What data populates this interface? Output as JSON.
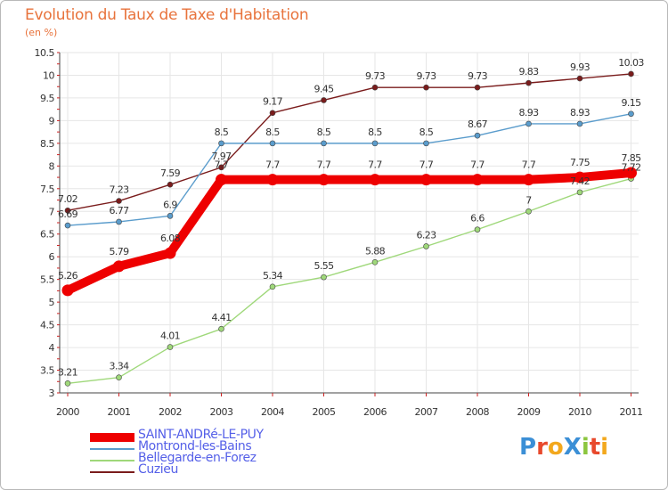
{
  "header": {
    "title": "Evolution du Taux de Taxe d'Habitation",
    "subtitle": "(en %)"
  },
  "logo": {
    "text": "ProXiti",
    "colors": [
      "#3b8fd6",
      "#e8492c",
      "#f3a81d",
      "#3b8fd6",
      "#8cc63f",
      "#e8492c",
      "#f3a81d"
    ]
  },
  "chart_data": {
    "type": "line",
    "title": "Evolution du Taux de Taxe d'Habitation",
    "subtitle": "(en %)",
    "xlabel": "",
    "ylabel": "",
    "categories": [
      "2000",
      "2001",
      "2002",
      "2003",
      "2004",
      "2005",
      "2006",
      "2007",
      "2008",
      "2009",
      "2010",
      "2011"
    ],
    "ylim": [
      3,
      10.5
    ],
    "yticks": [
      "3",
      "3.5",
      "4",
      "4.5",
      "5",
      "5.5",
      "6",
      "6.5",
      "7",
      "7.5",
      "8",
      "8.5",
      "9",
      "9.5",
      "10",
      "10.5"
    ],
    "grid": true,
    "legend_position": "bottom-left",
    "series": [
      {
        "name": "Cuzieu",
        "color": "#7a1c1c",
        "values": [
          7.02,
          7.23,
          7.59,
          7.97,
          9.17,
          9.45,
          9.73,
          9.73,
          9.73,
          9.83,
          9.93,
          10.03
        ],
        "labels": [
          "7.02",
          "7.23",
          "7.59",
          "7.97",
          "9.17",
          "9.45",
          "9.73",
          "9.73",
          "9.73",
          "9.83",
          "9.93",
          "10.03"
        ]
      },
      {
        "name": "Montrond-les-Bains",
        "color": "#5a9ccc",
        "values": [
          6.69,
          6.77,
          6.9,
          8.5,
          8.5,
          8.5,
          8.5,
          8.5,
          8.67,
          8.93,
          8.93,
          9.15
        ],
        "labels": [
          "6.69",
          "6.77",
          "6.9",
          "8.5",
          "8.5",
          "8.5",
          "8.5",
          "8.5",
          "8.67",
          "8.93",
          "8.93",
          "9.15"
        ]
      },
      {
        "name": "Bellegarde-en-Forez",
        "color": "#9fd87a",
        "values": [
          3.21,
          3.34,
          4.01,
          4.41,
          5.34,
          5.55,
          5.88,
          6.23,
          6.6,
          7.0,
          7.42,
          7.72
        ],
        "labels": [
          "3.21",
          "3.34",
          "4.01",
          "4.41",
          "5.34",
          "5.55",
          "5.88",
          "6.23",
          "6.6",
          "7",
          "7.42",
          "7.72"
        ]
      },
      {
        "name": "SAINT-ANDRé-LE-PUY",
        "color": "#ee0000",
        "values": [
          5.26,
          5.79,
          6.08,
          7.7,
          7.7,
          7.7,
          7.7,
          7.7,
          7.7,
          7.7,
          7.75,
          7.85
        ],
        "labels": [
          "5.26",
          "5.79",
          "6.08",
          "7.7",
          "7.7",
          "7.7",
          "7.7",
          "7.7",
          "7.7",
          "7.7",
          "7.75",
          "7.85"
        ]
      }
    ]
  },
  "legend": [
    {
      "label": "SAINT-ANDRé-LE-PUY",
      "color": "#ee0000",
      "thickness": 10
    },
    {
      "label": "Montrond-les-Bains",
      "color": "#5a9ccc",
      "thickness": 2
    },
    {
      "label": "Bellegarde-en-Forez",
      "color": "#9fd87a",
      "thickness": 2
    },
    {
      "label": "Cuzieu",
      "color": "#7a1c1c",
      "thickness": 2
    }
  ]
}
